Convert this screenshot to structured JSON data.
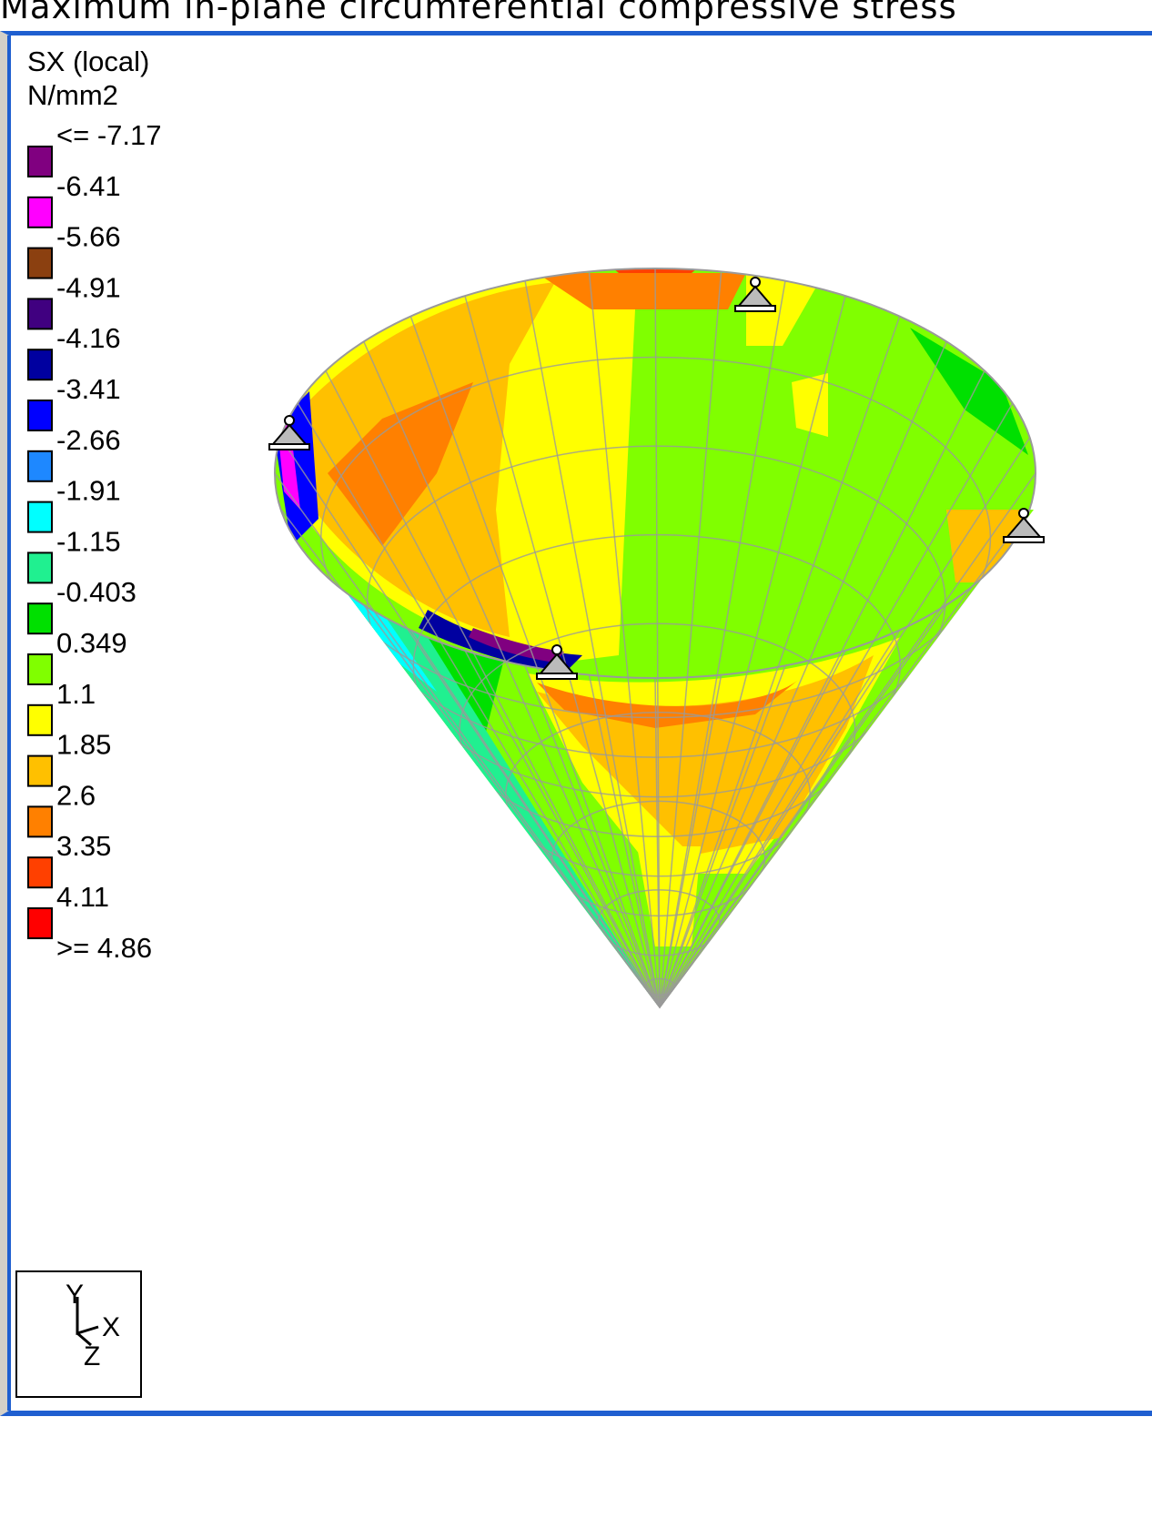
{
  "title": "Maximum in-plane circumferential compressive stress",
  "legend": {
    "quantity": "SX (local)",
    "unit": "N/mm2",
    "labels": [
      "<= -7.17",
      "-6.41",
      "-5.66",
      "-4.91",
      "-4.16",
      "-3.41",
      "-2.66",
      "-1.91",
      "-1.15",
      "-0.403",
      "0.349",
      "1.1",
      "1.85",
      "2.6",
      "3.35",
      "4.11",
      ">= 4.86"
    ],
    "colors": [
      "#800080",
      "#ff00ff",
      "#8b4010",
      "#400080",
      "#0000a0",
      "#0000ff",
      "#1e88ff",
      "#00ffff",
      "#20f090",
      "#00e000",
      "#80ff00",
      "#ffff00",
      "#ffc000",
      "#ff8000",
      "#ff4000",
      "#ff0000"
    ]
  },
  "triad": {
    "y": "Y",
    "x": "X",
    "z": "Z"
  }
}
